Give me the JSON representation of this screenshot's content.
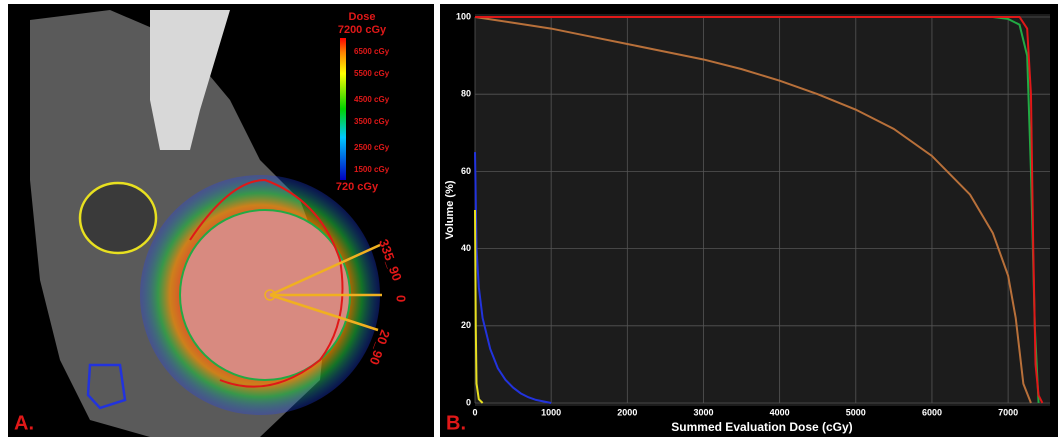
{
  "image_panel": {
    "panel_label": "A.",
    "dose_title": "Dose",
    "dose_max": "7200 cGy",
    "colorbar_labels": [
      "6500 cGy",
      "5500 cGy",
      "4500 cGy",
      "3500 cGy",
      "2500 cGy",
      "1500 cGy"
    ],
    "dose_min": "720 cGy",
    "beam_labels": [
      "335_90",
      "0",
      "20_90"
    ]
  },
  "chart_data": {
    "type": "line",
    "panel_label": "B.",
    "xlabel": "Summed Evaluation Dose (cGy)",
    "ylabel": "Volume (%)",
    "xlim": [
      0,
      7550
    ],
    "ylim": [
      0,
      100
    ],
    "xticks": [
      0,
      1000,
      2000,
      3000,
      4000,
      5000,
      6000,
      7000
    ],
    "yticks": [
      0,
      20,
      40,
      60,
      80,
      100
    ],
    "grid": true,
    "series": [
      {
        "color": "#b8703a",
        "x": [
          0,
          500,
          1000,
          1500,
          2000,
          2500,
          3000,
          3500,
          4000,
          4500,
          5000,
          5500,
          6000,
          6500,
          6800,
          7000,
          7100,
          7200,
          7300
        ],
        "values": [
          100,
          98.5,
          97,
          95,
          93,
          91,
          89,
          86.5,
          83.5,
          80,
          76,
          71,
          64,
          54,
          44,
          33,
          22,
          5,
          0
        ]
      },
      {
        "color": "#22aa44",
        "x": [
          0,
          6800,
          7000,
          7150,
          7250,
          7300,
          7350,
          7400
        ],
        "values": [
          100,
          100,
          99.5,
          98,
          90,
          60,
          20,
          0
        ]
      },
      {
        "color": "#e01818",
        "x": [
          0,
          7150,
          7250,
          7300,
          7330,
          7360,
          7400,
          7450
        ],
        "values": [
          100,
          100,
          97,
          80,
          40,
          10,
          2,
          0
        ]
      },
      {
        "color": "#2233dd",
        "x": [
          0,
          20,
          50,
          100,
          200,
          300,
          400,
          500,
          600,
          700,
          800,
          1000
        ],
        "values": [
          65,
          40,
          30,
          22,
          14,
          9,
          6,
          4,
          2.5,
          1.5,
          0.8,
          0
        ]
      },
      {
        "color": "#e8e020",
        "x": [
          0,
          10,
          20,
          50,
          100
        ],
        "values": [
          50,
          20,
          5,
          1,
          0
        ]
      }
    ]
  }
}
